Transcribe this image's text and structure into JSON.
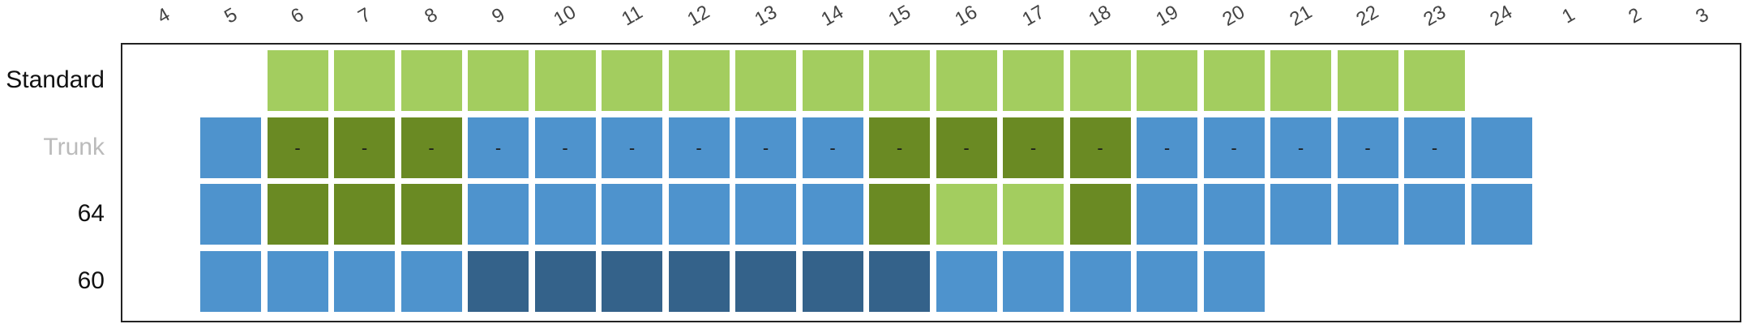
{
  "chart_data": {
    "type": "heatmap",
    "hours": [
      "4",
      "5",
      "6",
      "7",
      "8",
      "9",
      "10",
      "11",
      "12",
      "13",
      "14",
      "15",
      "16",
      "17",
      "18",
      "19",
      "20",
      "21",
      "22",
      "23",
      "24",
      "1",
      "2",
      "3"
    ],
    "rows": [
      {
        "label": "Standard",
        "dim": false,
        "cells": [
          {
            "hour": "6",
            "state": "light"
          },
          {
            "hour": "7",
            "state": "light"
          },
          {
            "hour": "8",
            "state": "light"
          },
          {
            "hour": "9",
            "state": "light"
          },
          {
            "hour": "10",
            "state": "light"
          },
          {
            "hour": "11",
            "state": "light"
          },
          {
            "hour": "12",
            "state": "light"
          },
          {
            "hour": "13",
            "state": "light"
          },
          {
            "hour": "14",
            "state": "light"
          },
          {
            "hour": "15",
            "state": "light"
          },
          {
            "hour": "16",
            "state": "light"
          },
          {
            "hour": "17",
            "state": "light"
          },
          {
            "hour": "18",
            "state": "light"
          },
          {
            "hour": "19",
            "state": "light"
          },
          {
            "hour": "20",
            "state": "light"
          },
          {
            "hour": "21",
            "state": "light"
          },
          {
            "hour": "22",
            "state": "light"
          },
          {
            "hour": "23",
            "state": "light"
          }
        ]
      },
      {
        "label": "Trunk",
        "dim": true,
        "cells": [
          {
            "hour": "5",
            "state": "blue"
          },
          {
            "hour": "6",
            "state": "dark",
            "text": "-"
          },
          {
            "hour": "7",
            "state": "dark",
            "text": "-"
          },
          {
            "hour": "8",
            "state": "dark",
            "text": "-"
          },
          {
            "hour": "9",
            "state": "blue",
            "text": "-"
          },
          {
            "hour": "10",
            "state": "blue",
            "text": "-"
          },
          {
            "hour": "11",
            "state": "blue",
            "text": "-"
          },
          {
            "hour": "12",
            "state": "blue",
            "text": "-"
          },
          {
            "hour": "13",
            "state": "blue",
            "text": "-"
          },
          {
            "hour": "14",
            "state": "blue",
            "text": "-"
          },
          {
            "hour": "15",
            "state": "dark",
            "text": "-"
          },
          {
            "hour": "16",
            "state": "dark",
            "text": "-"
          },
          {
            "hour": "17",
            "state": "dark",
            "text": "-"
          },
          {
            "hour": "18",
            "state": "dark",
            "text": "-"
          },
          {
            "hour": "19",
            "state": "blue",
            "text": "-"
          },
          {
            "hour": "20",
            "state": "blue",
            "text": "-"
          },
          {
            "hour": "21",
            "state": "blue",
            "text": "-"
          },
          {
            "hour": "22",
            "state": "blue",
            "text": "-"
          },
          {
            "hour": "23",
            "state": "blue",
            "text": "-"
          },
          {
            "hour": "24",
            "state": "blue"
          }
        ]
      },
      {
        "label": "64",
        "dim": false,
        "cells": [
          {
            "hour": "5",
            "state": "blue"
          },
          {
            "hour": "6",
            "state": "dark"
          },
          {
            "hour": "7",
            "state": "dark"
          },
          {
            "hour": "8",
            "state": "dark"
          },
          {
            "hour": "9",
            "state": "blue"
          },
          {
            "hour": "10",
            "state": "blue"
          },
          {
            "hour": "11",
            "state": "blue"
          },
          {
            "hour": "12",
            "state": "blue"
          },
          {
            "hour": "13",
            "state": "blue"
          },
          {
            "hour": "14",
            "state": "blue"
          },
          {
            "hour": "15",
            "state": "dark"
          },
          {
            "hour": "16",
            "state": "light"
          },
          {
            "hour": "17",
            "state": "light"
          },
          {
            "hour": "18",
            "state": "dark"
          },
          {
            "hour": "19",
            "state": "blue"
          },
          {
            "hour": "20",
            "state": "blue"
          },
          {
            "hour": "21",
            "state": "blue"
          },
          {
            "hour": "22",
            "state": "blue"
          },
          {
            "hour": "23",
            "state": "blue"
          },
          {
            "hour": "24",
            "state": "blue"
          }
        ]
      },
      {
        "label": "60",
        "dim": false,
        "cells": [
          {
            "hour": "5",
            "state": "blue"
          },
          {
            "hour": "6",
            "state": "blue"
          },
          {
            "hour": "7",
            "state": "blue"
          },
          {
            "hour": "8",
            "state": "blue"
          },
          {
            "hour": "9",
            "state": "navy"
          },
          {
            "hour": "10",
            "state": "navy"
          },
          {
            "hour": "11",
            "state": "navy"
          },
          {
            "hour": "12",
            "state": "navy"
          },
          {
            "hour": "13",
            "state": "navy"
          },
          {
            "hour": "14",
            "state": "navy"
          },
          {
            "hour": "15",
            "state": "navy"
          },
          {
            "hour": "16",
            "state": "blue"
          },
          {
            "hour": "17",
            "state": "blue"
          },
          {
            "hour": "18",
            "state": "blue"
          },
          {
            "hour": "19",
            "state": "blue"
          },
          {
            "hour": "20",
            "state": "blue"
          }
        ]
      }
    ],
    "state_colors": {
      "light": "#a3cd5f",
      "dark": "#6a8a23",
      "blue": "#4e93cd",
      "navy": "#34628a"
    },
    "row_label_colors": {
      "normal": "#111111",
      "dim": "#bbbbbb"
    }
  }
}
